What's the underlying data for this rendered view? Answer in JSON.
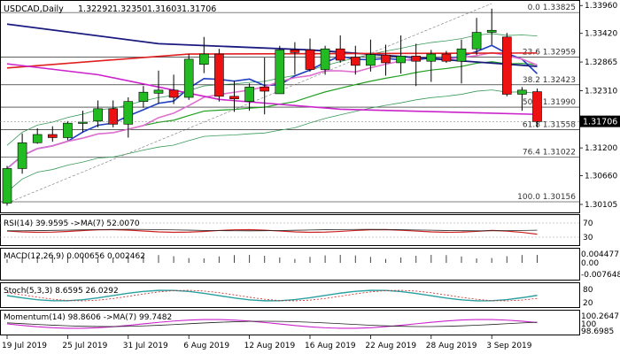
{
  "chart_data": {
    "type": "candlestick",
    "title": "USDCAD,Daily",
    "ohlc": {
      "open": "1.32292",
      "high": "1.32350",
      "low": "1.31603",
      "close": "1.31706"
    },
    "current_price": 1.31706,
    "current_price_label": "1.31706",
    "ylim": [
      1.2995,
      1.3405
    ],
    "y_ticks": [
      {
        "value": 1.3396,
        "label": "1.33960"
      },
      {
        "value": 1.3342,
        "label": "1.33420"
      },
      {
        "value": 1.32865,
        "label": "1.32865"
      },
      {
        "value": 1.3231,
        "label": "1.32310"
      },
      {
        "value": 1.312,
        "label": "1.31200"
      },
      {
        "value": 1.3066,
        "label": "1.30660"
      },
      {
        "value": 1.30105,
        "label": "1.30105"
      }
    ],
    "x_labels": [
      {
        "index": 0,
        "label": "19 Jul 2019"
      },
      {
        "index": 4,
        "label": "25 Jul 2019"
      },
      {
        "index": 8,
        "label": "31 Jul 2019"
      },
      {
        "index": 12,
        "label": "6 Aug 2019"
      },
      {
        "index": 16,
        "label": "12 Aug 2019"
      },
      {
        "index": 20,
        "label": "16 Aug 2019"
      },
      {
        "index": 24,
        "label": "22 Aug 2019"
      },
      {
        "index": 28,
        "label": "28 Aug 2019"
      },
      {
        "index": 32,
        "label": "3 Sep 2019"
      }
    ],
    "candles": [
      {
        "o": 1.3013,
        "h": 1.3085,
        "l": 1.3008,
        "c": 1.308
      },
      {
        "o": 1.308,
        "h": 1.3148,
        "l": 1.307,
        "c": 1.313
      },
      {
        "o": 1.313,
        "h": 1.3158,
        "l": 1.3128,
        "c": 1.3146
      },
      {
        "o": 1.3146,
        "h": 1.3162,
        "l": 1.3132,
        "c": 1.314
      },
      {
        "o": 1.314,
        "h": 1.3172,
        "l": 1.3135,
        "c": 1.3168
      },
      {
        "o": 1.3168,
        "h": 1.3192,
        "l": 1.315,
        "c": 1.317
      },
      {
        "o": 1.3172,
        "h": 1.3212,
        "l": 1.316,
        "c": 1.3196
      },
      {
        "o": 1.3196,
        "h": 1.3212,
        "l": 1.316,
        "c": 1.3166
      },
      {
        "o": 1.3166,
        "h": 1.3218,
        "l": 1.314,
        "c": 1.321
      },
      {
        "o": 1.321,
        "h": 1.324,
        "l": 1.3198,
        "c": 1.3228
      },
      {
        "o": 1.3226,
        "h": 1.327,
        "l": 1.3206,
        "c": 1.3232
      },
      {
        "o": 1.3232,
        "h": 1.3262,
        "l": 1.3205,
        "c": 1.3218
      },
      {
        "o": 1.3218,
        "h": 1.3302,
        "l": 1.3213,
        "c": 1.3292
      },
      {
        "o": 1.3282,
        "h": 1.3335,
        "l": 1.3265,
        "c": 1.3302
      },
      {
        "o": 1.3302,
        "h": 1.3312,
        "l": 1.321,
        "c": 1.322
      },
      {
        "o": 1.322,
        "h": 1.325,
        "l": 1.319,
        "c": 1.3215
      },
      {
        "o": 1.321,
        "h": 1.3245,
        "l": 1.3192,
        "c": 1.3238
      },
      {
        "o": 1.3238,
        "h": 1.3295,
        "l": 1.3185,
        "c": 1.323
      },
      {
        "o": 1.3225,
        "h": 1.3318,
        "l": 1.3225,
        "c": 1.331
      },
      {
        "o": 1.331,
        "h": 1.3325,
        "l": 1.3262,
        "c": 1.3305
      },
      {
        "o": 1.331,
        "h": 1.3332,
        "l": 1.3268,
        "c": 1.3272
      },
      {
        "o": 1.3272,
        "h": 1.3318,
        "l": 1.3262,
        "c": 1.3312
      },
      {
        "o": 1.3312,
        "h": 1.3338,
        "l": 1.3285,
        "c": 1.329
      },
      {
        "o": 1.3296,
        "h": 1.3318,
        "l": 1.3262,
        "c": 1.328
      },
      {
        "o": 1.328,
        "h": 1.333,
        "l": 1.3268,
        "c": 1.3301
      },
      {
        "o": 1.33,
        "h": 1.332,
        "l": 1.326,
        "c": 1.3285
      },
      {
        "o": 1.3285,
        "h": 1.3338,
        "l": 1.3264,
        "c": 1.3298
      },
      {
        "o": 1.3298,
        "h": 1.3322,
        "l": 1.324,
        "c": 1.3288
      },
      {
        "o": 1.3288,
        "h": 1.331,
        "l": 1.3248,
        "c": 1.3302
      },
      {
        "o": 1.3302,
        "h": 1.3308,
        "l": 1.3285,
        "c": 1.3288
      },
      {
        "o": 1.3288,
        "h": 1.333,
        "l": 1.3245,
        "c": 1.3312
      },
      {
        "o": 1.3312,
        "h": 1.3372,
        "l": 1.33,
        "c": 1.3344
      },
      {
        "o": 1.3344,
        "h": 1.339,
        "l": 1.332,
        "c": 1.3348
      },
      {
        "o": 1.3335,
        "h": 1.3343,
        "l": 1.322,
        "c": 1.3224
      },
      {
        "o": 1.3224,
        "h": 1.3238,
        "l": 1.3192,
        "c": 1.3232
      },
      {
        "o": 1.3229,
        "h": 1.3235,
        "l": 1.316,
        "c": 1.3171
      }
    ],
    "fibonacci": [
      {
        "level": "0.0",
        "price": 1.33825
      },
      {
        "level": "23.6",
        "price": 1.32959
      },
      {
        "level": "38.2",
        "price": 1.32423
      },
      {
        "level": "50.0",
        "price": 1.3199
      },
      {
        "level": "61.8",
        "price": 1.31558
      },
      {
        "level": "76.4",
        "price": 1.31022
      },
      {
        "level": "100.0",
        "price": 1.30156
      }
    ],
    "indicators": {
      "rsi": {
        "label": "RSI(14) 39.9595 ->MA(7) 52.0070",
        "levels": [
          "70",
          "30"
        ]
      },
      "macd": {
        "label": "MACD(12,26,9) 0.000656 0.002462",
        "ticks": [
          "0.004477",
          "0.00",
          "-0.007648"
        ]
      },
      "stoch": {
        "label": "Stoch(5,3,3) 8.6595 26.0292",
        "ticks": [
          "80",
          "20"
        ]
      },
      "momentum": {
        "label": "Momentum(14) 98.8606 ->MA(7) 99.7482",
        "ticks": [
          "100.2647",
          "100",
          "98.6985"
        ]
      }
    }
  }
}
